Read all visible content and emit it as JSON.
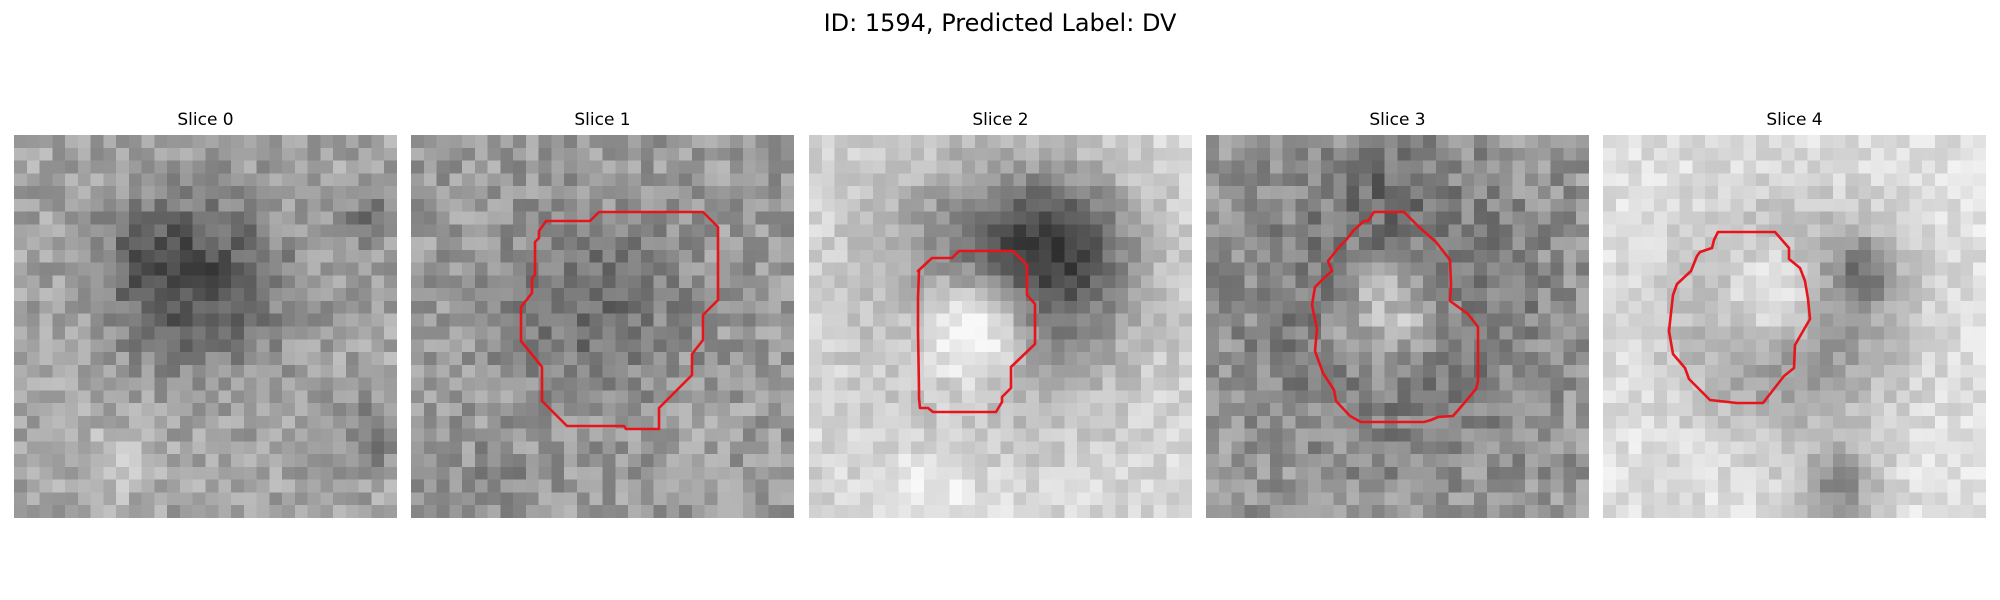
{
  "figure": {
    "title": "ID: 1594, Predicted Label: DV"
  },
  "contour_color": "#e8141b",
  "slices": [
    {
      "title": "Slice 0"
    },
    {
      "title": "Slice 1"
    },
    {
      "title": "Slice 2"
    },
    {
      "title": "Slice 3"
    },
    {
      "title": "Slice 4"
    }
  ]
}
